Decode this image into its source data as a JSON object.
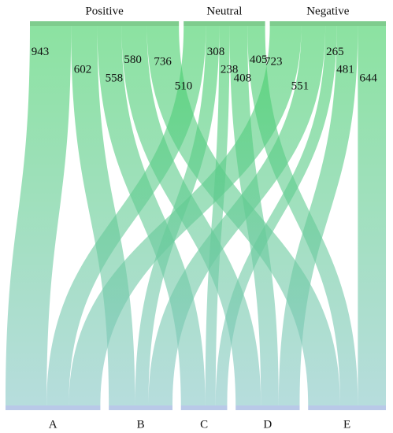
{
  "chart_data": {
    "type": "sankey",
    "top_nodes": [
      "Positive",
      "Neutral",
      "Negative"
    ],
    "bottom_nodes": [
      "A",
      "B",
      "C",
      "D",
      "E"
    ],
    "links": [
      {
        "source": "Positive",
        "target": "A",
        "value": 943
      },
      {
        "source": "Positive",
        "target": "B",
        "value": 602
      },
      {
        "source": "Positive",
        "target": "C",
        "value": 558
      },
      {
        "source": "Positive",
        "target": "D",
        "value": 580
      },
      {
        "source": "Positive",
        "target": "E",
        "value": 736
      },
      {
        "source": "Neutral",
        "target": "A",
        "value": 510
      },
      {
        "source": "Neutral",
        "target": "B",
        "value": 308
      },
      {
        "source": "Neutral",
        "target": "C",
        "value": 238
      },
      {
        "source": "Neutral",
        "target": "D",
        "value": 408
      },
      {
        "source": "Neutral",
        "target": "E",
        "value": 405
      },
      {
        "source": "Negative",
        "target": "A",
        "value": 723
      },
      {
        "source": "Negative",
        "target": "B",
        "value": 551
      },
      {
        "source": "Negative",
        "target": "C",
        "value": 265
      },
      {
        "source": "Negative",
        "target": "D",
        "value": 481
      },
      {
        "source": "Negative",
        "target": "E",
        "value": 644
      }
    ],
    "top_color": "#3fcf62",
    "bottom_color": "#86c6c6",
    "top_node_color": "#7fcc8e",
    "bottom_node_color": "#b9c9e8"
  }
}
